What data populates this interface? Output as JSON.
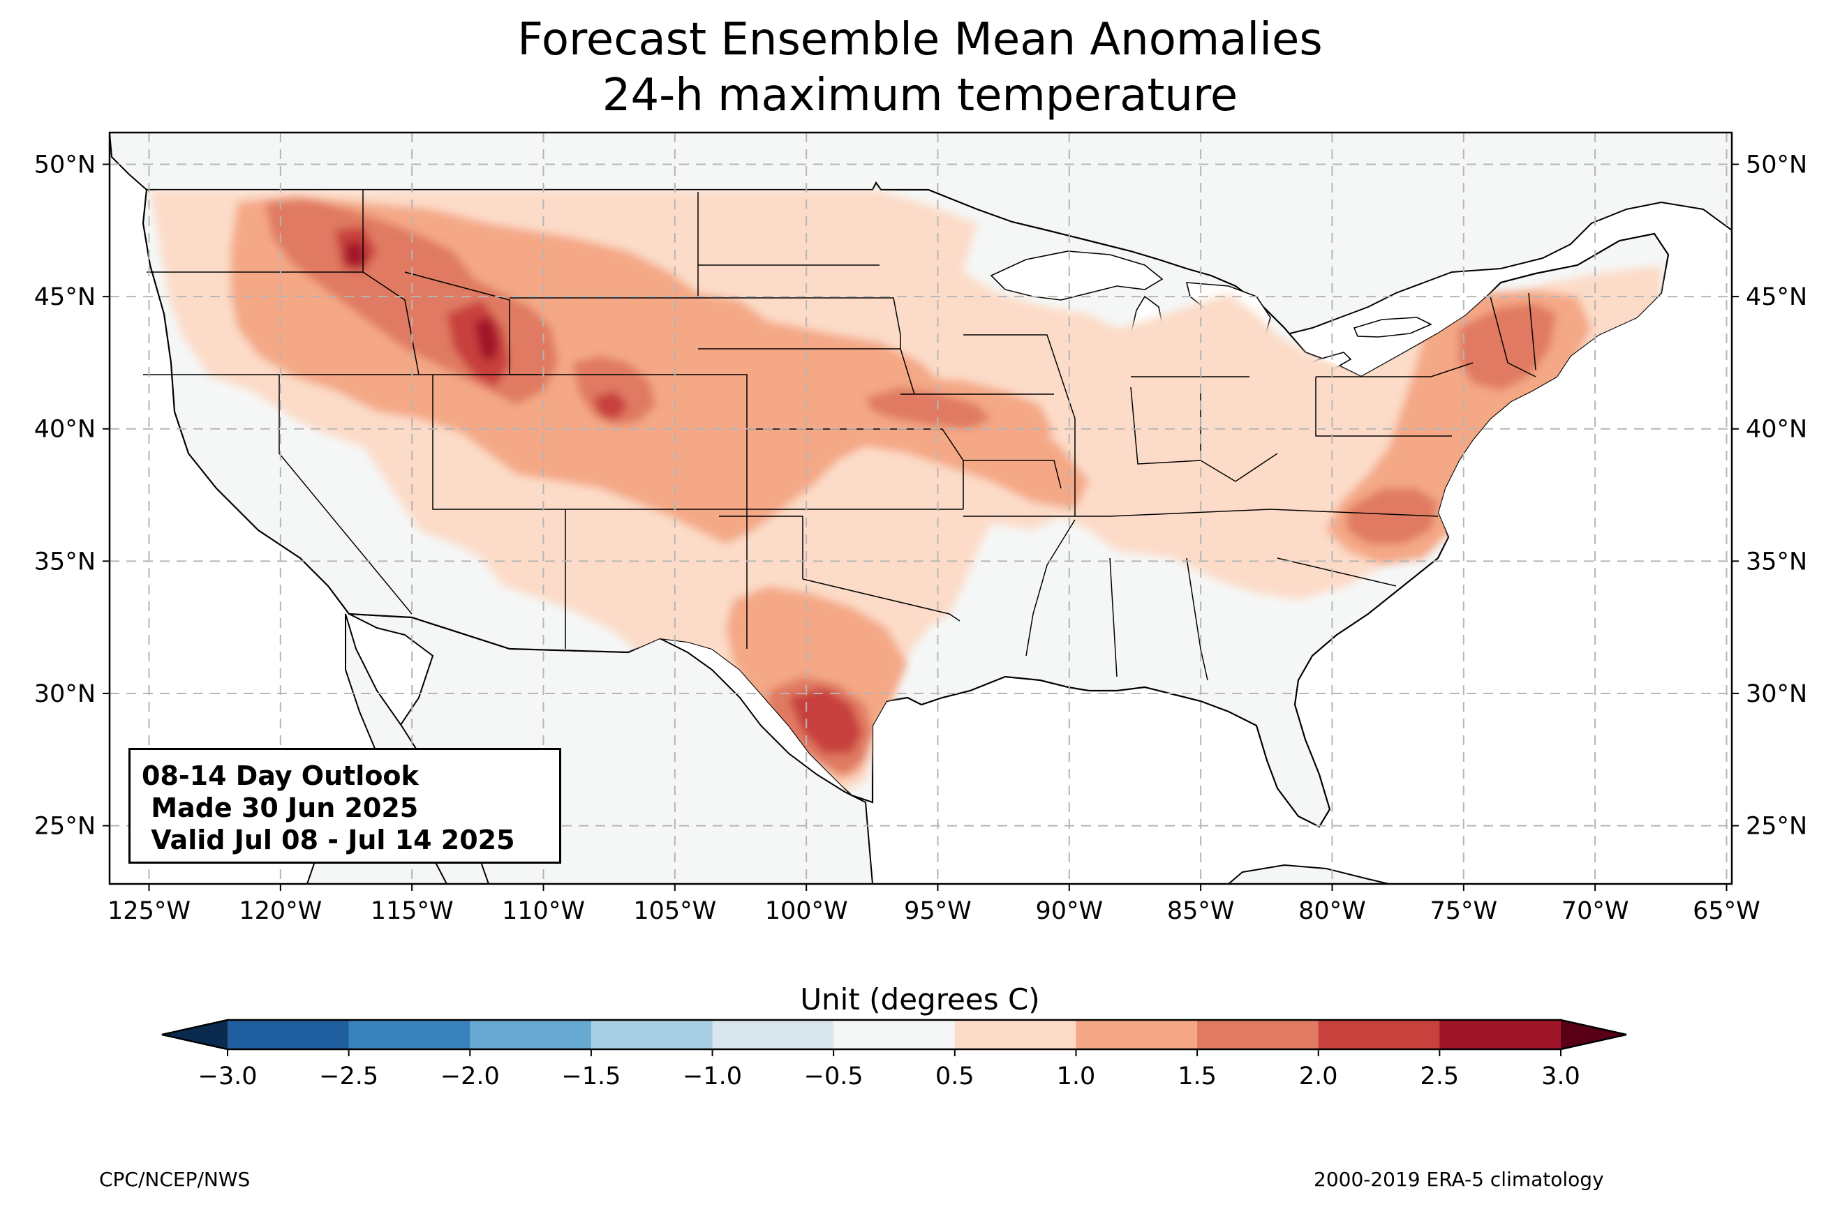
{
  "title": {
    "line1": "Forecast Ensemble Mean Anomalies",
    "line2": "24-h maximum temperature"
  },
  "map": {
    "lon_range": [
      -126.5,
      -64.8
    ],
    "lat_range": [
      22.8,
      51.2
    ],
    "lon_ticks": [
      "125°W",
      "120°W",
      "115°W",
      "110°W",
      "105°W",
      "100°W",
      "95°W",
      "90°W",
      "85°W",
      "80°W",
      "75°W",
      "70°W",
      "65°W"
    ],
    "lon_tick_values": [
      -125,
      -120,
      -115,
      -110,
      -105,
      -100,
      -95,
      -90,
      -85,
      -80,
      -75,
      -70,
      -65
    ],
    "lat_ticks": [
      "25°N",
      "30°N",
      "35°N",
      "40°N",
      "45°N",
      "50°N"
    ],
    "lat_tick_values": [
      25,
      30,
      35,
      40,
      45,
      50
    ],
    "gridlines": true,
    "land_color": "#f5f7f7",
    "ocean_color": "#ffffff"
  },
  "info_box": {
    "line1": "08-14 Day Outlook",
    "line2": " Made 30 Jun 2025",
    "line3": " Valid Jul 08 - Jul 14 2025"
  },
  "colorbar": {
    "title": "Unit (degrees C)",
    "ticks": [
      "−3.0",
      "−2.5",
      "−2.0",
      "−1.5",
      "−1.0",
      "−0.5",
      "0.5",
      "1.0",
      "1.5",
      "2.0",
      "2.5",
      "3.0"
    ],
    "tick_values": [
      -3.0,
      -2.5,
      -2.0,
      -1.5,
      -1.0,
      -0.5,
      0.5,
      1.0,
      1.5,
      2.0,
      2.5,
      3.0
    ],
    "under_color": "#0b2a4f",
    "over_color": "#5a0016",
    "colors": [
      "#1f5fa0",
      "#3a82bd",
      "#68a9d1",
      "#a8cfe4",
      "#d9e6ee",
      "#f5f7f7",
      "#fcdcc8",
      "#f4a886",
      "#e07a62",
      "#c8413c",
      "#a1152a"
    ]
  },
  "credits": {
    "left": "CPC/NCEP/NWS",
    "right": "2000-2019 ERA-5 climatology"
  }
}
